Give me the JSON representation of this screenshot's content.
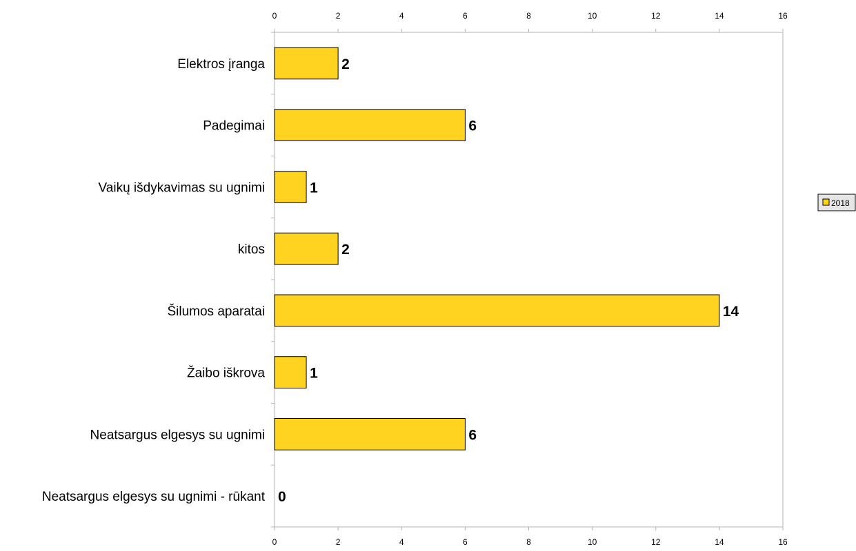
{
  "chart_data": {
    "type": "bar",
    "orientation": "horizontal",
    "categories": [
      "Elektros įranga",
      "Padegimai",
      "Vaikų išdykavimas su ugnimi",
      "kitos",
      "Šilumos aparatai",
      "Žaibo iškrova",
      "Neatsargus elgesys su ugnimi",
      "Neatsargus elgesys su ugnimi - rūkant"
    ],
    "series": [
      {
        "name": "2018",
        "values": [
          2,
          6,
          1,
          2,
          14,
          1,
          6,
          0
        ],
        "color": "#FFD320"
      }
    ],
    "xlim": [
      0,
      16
    ],
    "x_ticks": [
      "0",
      "2",
      "4",
      "6",
      "8",
      "10",
      "12",
      "14",
      "16"
    ],
    "axis_ticks_top_and_bottom": true,
    "grid": false,
    "legend_position": "right",
    "title": "",
    "xlabel": "",
    "ylabel": ""
  }
}
